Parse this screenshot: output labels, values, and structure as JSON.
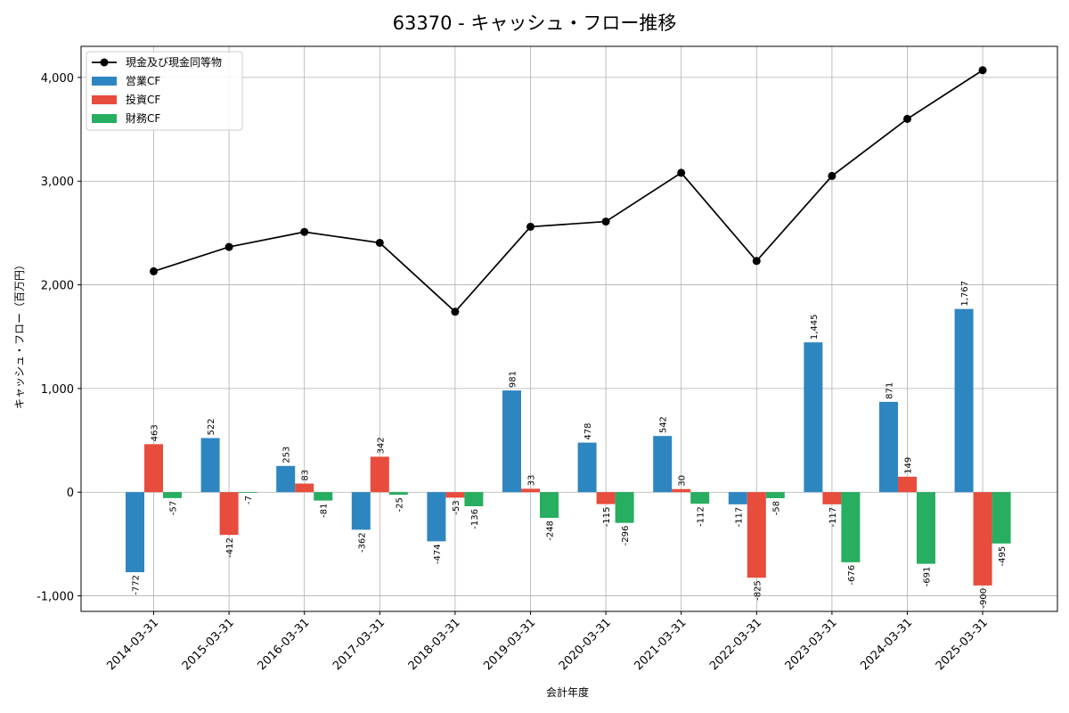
{
  "chart_data": {
    "type": "bar",
    "title": "63370 - キャッシュ・フロー推移",
    "xlabel": "会計年度",
    "ylabel": "キャッシュ・フロー（百万円）",
    "ylim": [
      -1150,
      4300
    ],
    "yticks": [
      -1000,
      0,
      1000,
      2000,
      3000,
      4000
    ],
    "ytick_labels": [
      "-1,000",
      "0",
      "1,000",
      "2,000",
      "3,000",
      "4,000"
    ],
    "grid": true,
    "legend_position": "top-left",
    "categories": [
      "2014-03-31",
      "2015-03-31",
      "2016-03-31",
      "2017-03-31",
      "2018-03-31",
      "2019-03-31",
      "2020-03-31",
      "2021-03-31",
      "2022-03-31",
      "2023-03-31",
      "2024-03-31",
      "2025-03-31"
    ],
    "line_series": {
      "name": "現金及び現金同等物",
      "color": "#000000",
      "values": [
        2130,
        2365,
        2510,
        2405,
        1740,
        2560,
        2610,
        3080,
        2230,
        3050,
        3600,
        4070
      ]
    },
    "series": [
      {
        "name": "営業CF",
        "color": "#2e86c1",
        "values": [
          -772,
          522,
          253,
          -362,
          -474,
          981,
          478,
          542,
          -117,
          1445,
          871,
          1767
        ],
        "labels": [
          "-772",
          "522",
          "253",
          "-362",
          "-474",
          "981",
          "478",
          "542",
          "-117",
          "1,445",
          "871",
          "1,767"
        ]
      },
      {
        "name": "投資CF",
        "color": "#e74c3c",
        "values": [
          463,
          -412,
          83,
          342,
          -53,
          33,
          -115,
          30,
          -825,
          -117,
          149,
          -900
        ],
        "labels": [
          "463",
          "-412",
          "83",
          "342",
          "-53",
          "33",
          "-115",
          "30",
          "-825",
          "-117",
          "149",
          "-900"
        ]
      },
      {
        "name": "財務CF",
        "color": "#27ae60",
        "values": [
          -57,
          -7,
          -81,
          -25,
          -136,
          -248,
          -296,
          -112,
          -58,
          -676,
          -691,
          -495
        ],
        "labels": [
          "-57",
          "-7",
          "-81",
          "-25",
          "-136",
          "-248",
          "-296",
          "-112",
          "-58",
          "-676",
          "-691",
          "-495"
        ]
      }
    ]
  }
}
